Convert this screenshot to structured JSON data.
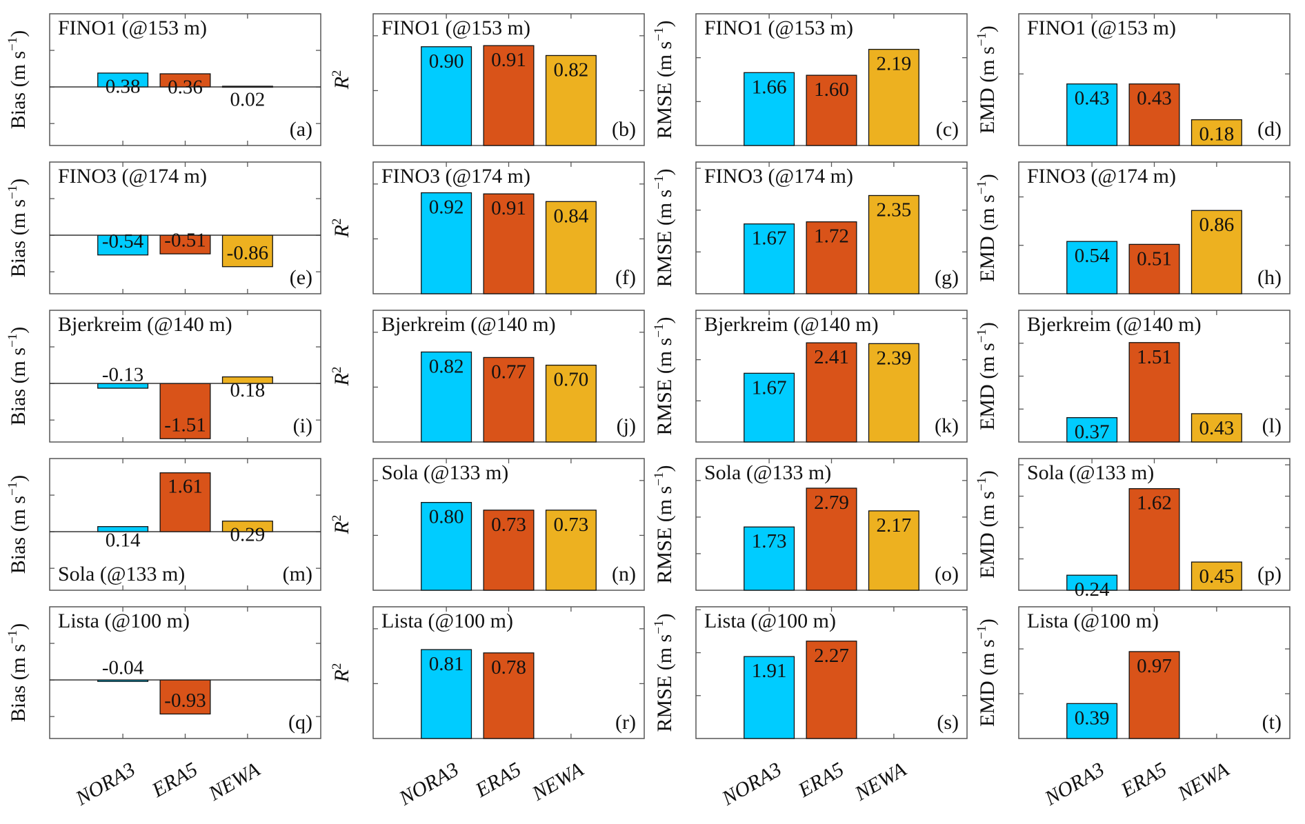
{
  "colors": {
    "NORA3": "#00CCFF",
    "ERA5": "#D95319",
    "NEWA": "#EDB120"
  },
  "categories": [
    "NORA3",
    "ERA5",
    "NEWA"
  ],
  "ylabels": {
    "bias": "Bias (m s",
    "r2": "R",
    "rmse": "RMSE (m s",
    "emd": "EMD (m s",
    "unit_sup": "−1",
    "r2_sup": "2",
    "close": ")"
  },
  "chart_data": [
    {
      "type": "bar",
      "panel": "(a)",
      "title": "FINO1 (@153 m)",
      "metric": "bias",
      "values": [
        0.38,
        0.36,
        0.02
      ],
      "labels": [
        "0.38",
        "0.36",
        "0.02"
      ],
      "ylim": [
        -1.6,
        2
      ]
    },
    {
      "type": "bar",
      "panel": "(b)",
      "title": "FINO1 (@153 m)",
      "metric": "r2",
      "values": [
        0.9,
        0.91,
        0.82
      ],
      "labels": [
        "0.90",
        "0.91",
        "0.82"
      ],
      "ylim": [
        0,
        1.2
      ]
    },
    {
      "type": "bar",
      "panel": "(c)",
      "title": "FINO1 (@153 m)",
      "metric": "rmse",
      "values": [
        1.66,
        1.6,
        2.19
      ],
      "labels": [
        "1.66",
        "1.60",
        "2.19"
      ],
      "ylim": [
        0,
        3
      ]
    },
    {
      "type": "bar",
      "panel": "(d)",
      "title": "FINO1 (@153 m)",
      "metric": "emd",
      "values": [
        0.43,
        0.43,
        0.18
      ],
      "labels": [
        "0.43",
        "0.43",
        "0.18"
      ],
      "ylim": [
        0,
        0.92
      ]
    },
    {
      "type": "bar",
      "panel": "(e)",
      "title": "FINO3 (@174 m)",
      "metric": "bias",
      "values": [
        -0.54,
        -0.51,
        -0.86
      ],
      "labels": [
        "-0.54",
        "-0.51",
        "-0.86"
      ],
      "ylim": [
        -1.6,
        2
      ]
    },
    {
      "type": "bar",
      "panel": "(f)",
      "title": "FINO3 (@174 m)",
      "metric": "r2",
      "values": [
        0.92,
        0.91,
        0.84
      ],
      "labels": [
        "0.92",
        "0.91",
        "0.84"
      ],
      "ylim": [
        0,
        1.2
      ]
    },
    {
      "type": "bar",
      "panel": "(g)",
      "title": "FINO3 (@174 m)",
      "metric": "rmse",
      "values": [
        1.67,
        1.72,
        2.35
      ],
      "labels": [
        "1.67",
        "1.72",
        "2.35"
      ],
      "ylim": [
        0,
        3.15
      ]
    },
    {
      "type": "bar",
      "panel": "(h)",
      "title": "FINO3 (@174 m)",
      "metric": "emd",
      "values": [
        0.54,
        0.51,
        0.86
      ],
      "labels": [
        "0.54",
        "0.51",
        "0.86"
      ],
      "ylim": [
        0,
        1.36
      ]
    },
    {
      "type": "bar",
      "panel": "(i)",
      "title": "Bjerkreim (@140 m)",
      "metric": "bias",
      "values": [
        -0.13,
        -1.51,
        0.18
      ],
      "labels": [
        "-0.13",
        "-1.51",
        "0.18"
      ],
      "ylim": [
        -1.6,
        2
      ]
    },
    {
      "type": "bar",
      "panel": "(j)",
      "title": "Bjerkreim (@140 m)",
      "metric": "r2",
      "values": [
        0.82,
        0.77,
        0.7
      ],
      "labels": [
        "0.82",
        "0.77",
        "0.70"
      ],
      "ylim": [
        0,
        1.2
      ]
    },
    {
      "type": "bar",
      "panel": "(k)",
      "title": "Bjerkreim (@140 m)",
      "metric": "rmse",
      "values": [
        1.67,
        2.41,
        2.39
      ],
      "labels": [
        "1.67",
        "2.41",
        "2.39"
      ],
      "ylim": [
        0,
        3.2
      ]
    },
    {
      "type": "bar",
      "panel": "(l)",
      "title": "Bjerkreim (@140 m)",
      "metric": "emd",
      "values": [
        0.37,
        1.51,
        0.43
      ],
      "labels": [
        "0.37",
        "1.51",
        "0.43"
      ],
      "ylim": [
        0,
        2.0
      ]
    },
    {
      "type": "bar",
      "panel": "(m)",
      "title": "Sola (@133 m)",
      "title_position": "bottom-left",
      "metric": "bias",
      "values": [
        0.14,
        1.61,
        0.29
      ],
      "labels": [
        "0.14",
        "1.61",
        "0.29"
      ],
      "ylim": [
        -1.6,
        2
      ]
    },
    {
      "type": "bar",
      "panel": "(n)",
      "title": "Sola (@133 m)",
      "metric": "r2",
      "values": [
        0.8,
        0.73,
        0.73
      ],
      "labels": [
        "0.80",
        "0.73",
        "0.73"
      ],
      "ylim": [
        0,
        1.2
      ]
    },
    {
      "type": "bar",
      "panel": "(o)",
      "title": "Sola (@133 m)",
      "metric": "rmse",
      "values": [
        1.73,
        2.79,
        2.17
      ],
      "labels": [
        "1.73",
        "2.79",
        "2.17"
      ],
      "ylim": [
        0,
        3.6
      ]
    },
    {
      "type": "bar",
      "panel": "(p)",
      "title": "Sola (@133 m)",
      "metric": "emd",
      "values": [
        0.24,
        1.62,
        0.45
      ],
      "labels": [
        "0.24",
        "1.62",
        "0.45"
      ],
      "ylim": [
        0,
        2.1
      ]
    },
    {
      "type": "bar",
      "panel": "(q)",
      "title": "Lista (@100 m)",
      "metric": "bias",
      "values": [
        -0.04,
        -0.93,
        null
      ],
      "labels": [
        "-0.04",
        "-0.93",
        null
      ],
      "ylim": [
        -1.6,
        2
      ]
    },
    {
      "type": "bar",
      "panel": "(r)",
      "title": "Lista (@100 m)",
      "metric": "r2",
      "values": [
        0.81,
        0.78,
        null
      ],
      "labels": [
        "0.81",
        "0.78",
        null
      ],
      "ylim": [
        0,
        1.2
      ]
    },
    {
      "type": "bar",
      "panel": "(s)",
      "title": "Lista (@100 m)",
      "metric": "rmse",
      "values": [
        1.91,
        2.27,
        null
      ],
      "labels": [
        "1.91",
        "2.27",
        null
      ],
      "ylim": [
        0,
        3.07
      ]
    },
    {
      "type": "bar",
      "panel": "(t)",
      "title": "Lista (@100 m)",
      "metric": "emd",
      "values": [
        0.39,
        0.97,
        null
      ],
      "labels": [
        "0.39",
        "0.97",
        null
      ],
      "ylim": [
        0,
        1.47
      ]
    }
  ]
}
